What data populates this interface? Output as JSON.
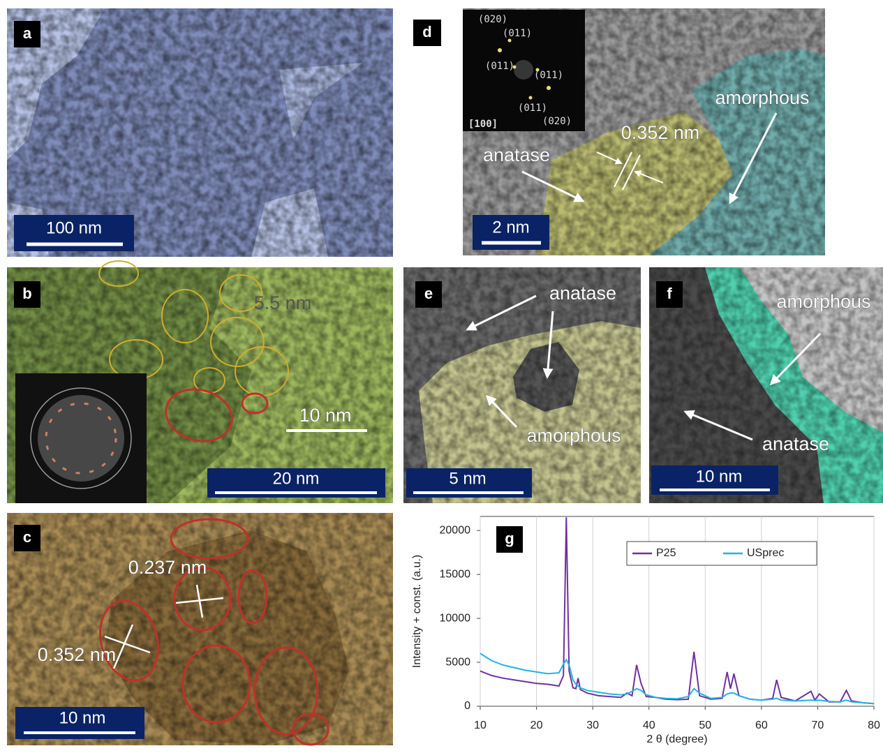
{
  "panels": [
    {
      "label": "a",
      "scale_bar": "100 nm"
    },
    {
      "label": "d",
      "scale_bar": "2 nm",
      "annotations": [
        "amorphous",
        "0.352 nm",
        "anatase"
      ],
      "inset_labels": [
        "(020)",
        "(011)",
        "(011)",
        "(011)",
        "(011)",
        "(020)",
        "[100]"
      ]
    },
    {
      "label": "b",
      "scale_bar": "20 nm",
      "annotations": [
        "5.5 nm",
        "10 nm"
      ]
    },
    {
      "label": "e",
      "scale_bar": "5 nm",
      "annotations": [
        "anatase",
        "amorphous"
      ]
    },
    {
      "label": "f",
      "scale_bar": "10 nm",
      "annotations": [
        "amorphous",
        "anatase"
      ]
    },
    {
      "label": "c",
      "scale_bar": "10 nm",
      "annotations": [
        "0.237 nm",
        "0.352 nm"
      ]
    }
  ],
  "chart_data": {
    "type": "line",
    "panel_label": "g",
    "x_label": "2 θ (degree)",
    "y_label": "Intensity + const. (a.u.)",
    "x": [
      10,
      12,
      14,
      16,
      18,
      20,
      22,
      24,
      24.8,
      25.3,
      25.8,
      26.5,
      27.0,
      27.4,
      27.8,
      29,
      31,
      33,
      35,
      36.1,
      37,
      37.8,
      38.6,
      39.5,
      41.2,
      43,
      45,
      47,
      48.0,
      49,
      51,
      53,
      53.9,
      54.5,
      55.1,
      56,
      58,
      60,
      62,
      62.7,
      63.5,
      66,
      68.8,
      69.5,
      70.3,
      72,
      74,
      75.1,
      76,
      78,
      80
    ],
    "series": [
      {
        "name": "P25",
        "color": "#7030a0",
        "values": [
          4000,
          3500,
          3200,
          3000,
          2800,
          2600,
          2500,
          2300,
          3500,
          21500,
          4000,
          2100,
          2000,
          3200,
          1900,
          1500,
          1200,
          1100,
          1000,
          1500,
          1200,
          4700,
          2600,
          1100,
          1000,
          800,
          750,
          800,
          6200,
          1200,
          800,
          900,
          3900,
          2000,
          3700,
          1200,
          800,
          700,
          900,
          3000,
          1000,
          600,
          1700,
          700,
          1400,
          500,
          500,
          1800,
          600,
          400,
          300
        ]
      },
      {
        "name": "USprec",
        "color": "#1fb4e6",
        "values": [
          6000,
          5200,
          4700,
          4400,
          4100,
          3900,
          3700,
          3800,
          4800,
          5300,
          4700,
          3000,
          2500,
          2300,
          2100,
          1800,
          1600,
          1400,
          1300,
          1400,
          1700,
          2000,
          1800,
          1300,
          1000,
          900,
          850,
          1100,
          2000,
          1500,
          900,
          1000,
          1400,
          1500,
          1500,
          1200,
          800,
          700,
          800,
          900,
          700,
          600,
          700,
          650,
          700,
          550,
          500,
          700,
          500,
          400,
          300
        ]
      }
    ],
    "xlim": [
      10,
      80
    ],
    "xticks": [
      10,
      20,
      30,
      40,
      50,
      60,
      70,
      80
    ],
    "ylim": [
      0,
      21600
    ],
    "yticks": [
      0,
      5000,
      10000,
      15000,
      20000
    ],
    "grid": "x",
    "legend": "top-right"
  }
}
